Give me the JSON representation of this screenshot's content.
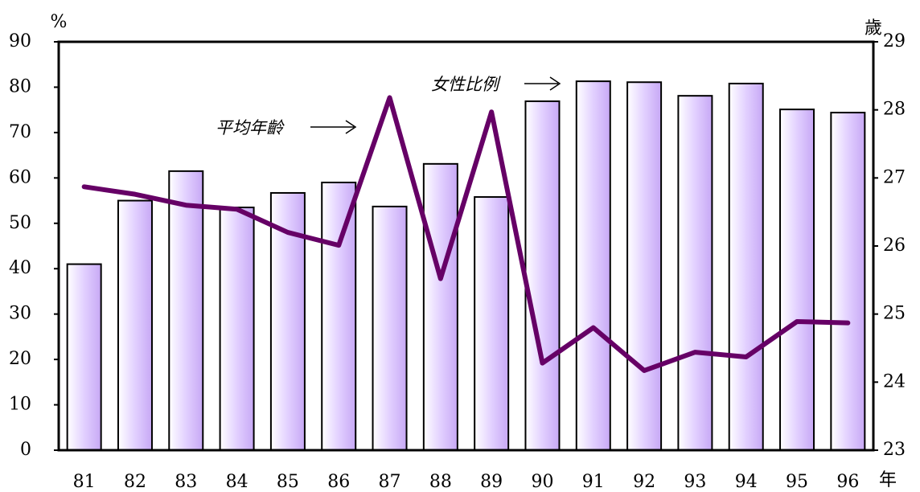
{
  "chart_data": {
    "type": "bar",
    "x_label": "年",
    "y_label": "%",
    "y2_label": "歲",
    "categories": [
      "81",
      "82",
      "83",
      "84",
      "85",
      "86",
      "87",
      "88",
      "89",
      "90",
      "91",
      "92",
      "93",
      "94",
      "95",
      "96"
    ],
    "series": [
      {
        "name": "女性比例",
        "type": "bar",
        "color": "#e2d0ff",
        "values": [
          41,
          55,
          61.5,
          53.5,
          56.7,
          59,
          53.7,
          63.1,
          55.8,
          76.9,
          81.3,
          81.1,
          78.1,
          80.8,
          75.1,
          74.4
        ]
      },
      {
        "name": "平均年齡",
        "type": "line",
        "axis": "y2",
        "color": "#660066",
        "values": [
          26.87,
          26.76,
          26.6,
          26.54,
          26.2,
          26.01,
          28.18,
          25.52,
          27.97,
          24.28,
          24.8,
          24.17,
          24.44,
          24.37,
          24.89,
          24.87
        ]
      }
    ],
    "ylim": [
      0,
      90
    ],
    "yticks": [
      0,
      10,
      20,
      30,
      40,
      50,
      60,
      70,
      80,
      90
    ],
    "y2lim": [
      23,
      29
    ],
    "y2ticks": [
      23,
      24,
      25,
      26,
      27,
      28,
      29
    ],
    "grid": false
  }
}
